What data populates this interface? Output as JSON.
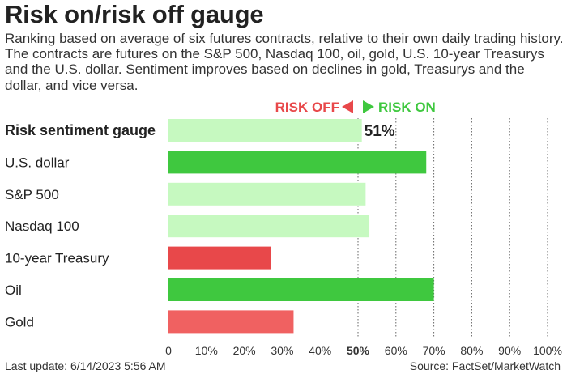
{
  "header": {
    "title": "Risk on/risk off gauge",
    "subtitle": "Ranking based on average of six futures contracts, relative to their own daily trading history. The contracts are futures on the S&P 500, Nasdaq 100, oil, gold, U.S. 10-year Treasurys and the U.S. dollar. Sentiment improves based on declines in gold, Treasurys and the dollar, and vice versa."
  },
  "legend": {
    "risk_off_label": "RISK OFF",
    "risk_on_label": "RISK ON",
    "risk_off_color": "#e8484a",
    "risk_on_color": "#3fc83f"
  },
  "chart_data": {
    "type": "bar",
    "orientation": "horizontal",
    "categories": [
      "Risk sentiment gauge",
      "U.S. dollar",
      "S&P 500",
      "Nasdaq 100",
      "10-year Treasury",
      "Oil",
      "Gold"
    ],
    "values": [
      51,
      68,
      52,
      53,
      27,
      70,
      33
    ],
    "value_labels": [
      "51%",
      "",
      "",
      "",
      "",
      "",
      ""
    ],
    "bar_colors": [
      "#c6f9c0",
      "#3fc83f",
      "#c6f9c0",
      "#c6f9c0",
      "#e8484a",
      "#3fc83f",
      "#f06161"
    ],
    "bold_categories": [
      "Risk sentiment gauge"
    ],
    "xlim": [
      0,
      100
    ],
    "x_ticks": [
      0,
      10,
      20,
      30,
      40,
      50,
      60,
      70,
      80,
      90,
      100
    ],
    "x_tick_labels": [
      "0",
      "10%",
      "20%",
      "30%",
      "40%",
      "50%",
      "60%",
      "70%",
      "80%",
      "90%",
      "100%"
    ],
    "bold_tick": 50,
    "grid": "vertical dotted at 50-100"
  },
  "footer": {
    "last_update": "Last update: 6/14/2023 5:56 AM",
    "source": "Source: FactSet/MarketWatch"
  }
}
